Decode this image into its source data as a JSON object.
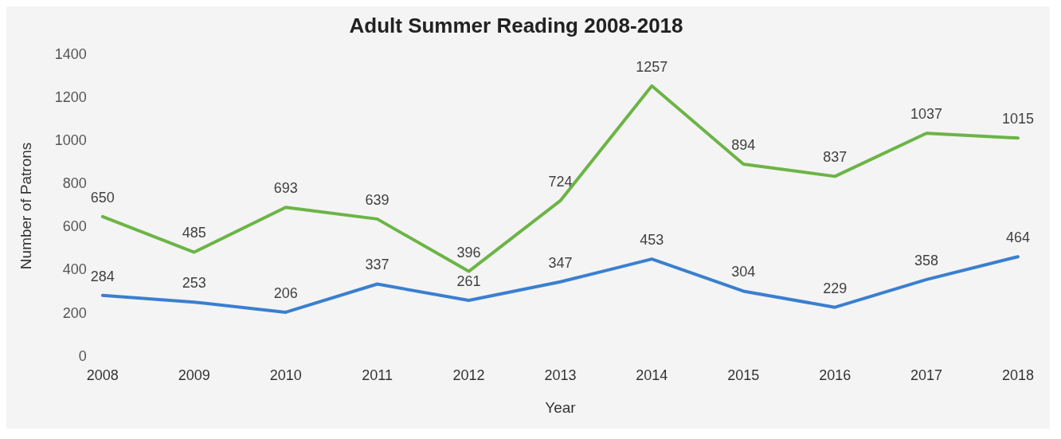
{
  "chart_data": {
    "type": "line",
    "title": "Adult Summer Reading 2008-2018",
    "xlabel": "Year",
    "ylabel": "Number of Patrons",
    "categories": [
      "2008",
      "2009",
      "2010",
      "2011",
      "2012",
      "2013",
      "2014",
      "2015",
      "2016",
      "2017",
      "2018"
    ],
    "series": [
      {
        "color": "#6cb446",
        "values": [
          650,
          485,
          693,
          639,
          396,
          724,
          1257,
          894,
          837,
          1037,
          1015
        ]
      },
      {
        "color": "#3a7fd0",
        "values": [
          284,
          253,
          206,
          337,
          261,
          347,
          453,
          304,
          229,
          358,
          464
        ]
      }
    ],
    "ylim": [
      0,
      1400
    ],
    "yticks": [
      0,
      200,
      400,
      600,
      800,
      1000,
      1200,
      1400
    ],
    "grid": false,
    "legend": false,
    "marker": "none",
    "line_style": "solid",
    "data_labels": true
  }
}
